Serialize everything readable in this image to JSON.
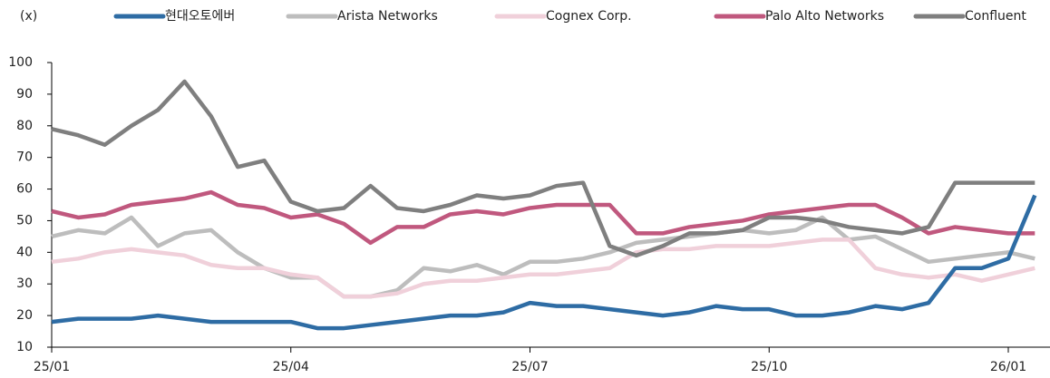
{
  "chart_data": {
    "type": "line",
    "unit_label": "(x)",
    "categories": [
      "25/01",
      null,
      null,
      null,
      null,
      null,
      null,
      null,
      null,
      "25/04",
      null,
      null,
      null,
      null,
      null,
      null,
      null,
      null,
      "25/07",
      null,
      null,
      null,
      null,
      null,
      null,
      null,
      null,
      "25/10",
      null,
      null,
      null,
      null,
      null,
      null,
      null,
      null,
      "26/01",
      null
    ],
    "ylim": [
      10,
      100
    ],
    "yticks": [
      10,
      20,
      30,
      40,
      50,
      60,
      70,
      80,
      90,
      100
    ],
    "legend": "top",
    "series": [
      {
        "name": "현대오토에버",
        "color": "#2e6ca4",
        "values": [
          18,
          19,
          19,
          19,
          20,
          19,
          18,
          18,
          18,
          18,
          16,
          16,
          17,
          18,
          19,
          20,
          20,
          21,
          24,
          23,
          23,
          22,
          21,
          20,
          21,
          23,
          22,
          22,
          20,
          20,
          21,
          23,
          22,
          24,
          35,
          35,
          38,
          58
        ]
      },
      {
        "name": "Arista Networks",
        "color": "#bdbdbd",
        "values": [
          45,
          47,
          46,
          51,
          42,
          46,
          47,
          40,
          35,
          32,
          32,
          26,
          26,
          28,
          35,
          34,
          36,
          33,
          37,
          37,
          38,
          40,
          43,
          44,
          45,
          46,
          47,
          46,
          47,
          51,
          44,
          45,
          41,
          37,
          38,
          39,
          40,
          38
        ]
      },
      {
        "name": "Cognex Corp.",
        "color": "#f0d0da",
        "values": [
          37,
          38,
          40,
          41,
          40,
          39,
          36,
          35,
          35,
          33,
          32,
          26,
          26,
          27,
          30,
          31,
          31,
          32,
          33,
          33,
          34,
          35,
          40,
          41,
          41,
          42,
          42,
          42,
          43,
          44,
          44,
          35,
          33,
          32,
          33,
          31,
          33,
          35
        ]
      },
      {
        "name": "Palo Alto Networks",
        "color": "#c0587e",
        "values": [
          53,
          51,
          52,
          55,
          56,
          57,
          59,
          55,
          54,
          51,
          52,
          49,
          43,
          48,
          48,
          52,
          53,
          52,
          54,
          55,
          55,
          55,
          46,
          46,
          48,
          49,
          50,
          52,
          53,
          54,
          55,
          55,
          51,
          46,
          48,
          47,
          46,
          46
        ]
      },
      {
        "name": "Confluent",
        "color": "#7f7f7f",
        "values": [
          79,
          77,
          74,
          80,
          85,
          94,
          83,
          67,
          69,
          56,
          53,
          54,
          61,
          54,
          53,
          55,
          58,
          57,
          58,
          61,
          62,
          42,
          39,
          42,
          46,
          46,
          47,
          51,
          51,
          50,
          48,
          47,
          46,
          48,
          62,
          62,
          62,
          62
        ]
      }
    ]
  }
}
